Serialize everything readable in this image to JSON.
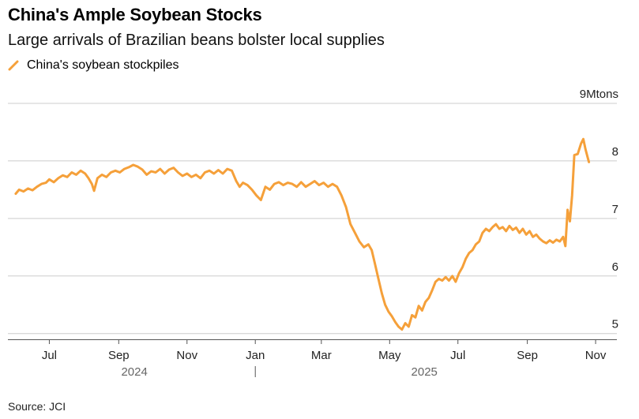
{
  "title": "China's Ample Soybean Stocks",
  "subtitle": "Large arrivals of Brazilian beans bolster local supplies",
  "source": "Source: JCI",
  "colors": {
    "series": "#f5a03a",
    "grid": "#cccccc",
    "axis": "#555555"
  },
  "chart_data": {
    "type": "line",
    "title": "China's Ample Soybean Stocks",
    "subtitle": "Large arrivals of Brazilian beans bolster local supplies",
    "ylim": [
      4.9,
      9
    ],
    "y_ticks": [
      {
        "value": 9,
        "label": "9Mtons"
      },
      {
        "value": 8,
        "label": "8"
      },
      {
        "value": 7,
        "label": "7"
      },
      {
        "value": 6,
        "label": "6"
      },
      {
        "value": 5,
        "label": "5"
      }
    ],
    "x_range": [
      "2024-05-25",
      "2025-11-20"
    ],
    "x_ticks": [
      {
        "date": "2024-07-01",
        "label": "Jul"
      },
      {
        "date": "2024-09-01",
        "label": "Sep"
      },
      {
        "date": "2024-11-01",
        "label": "Nov"
      },
      {
        "date": "2025-01-01",
        "label": "Jan"
      },
      {
        "date": "2025-03-01",
        "label": "Mar"
      },
      {
        "date": "2025-05-01",
        "label": "May"
      },
      {
        "date": "2025-07-01",
        "label": "Jul"
      },
      {
        "date": "2025-09-01",
        "label": "Sep"
      },
      {
        "date": "2025-11-01",
        "label": "Nov"
      }
    ],
    "year_labels": [
      {
        "date": "2024-09-15",
        "label": "2024"
      },
      {
        "date": "2025-06-01",
        "label": "2025"
      }
    ],
    "year_divider": "2025-01-01",
    "series": [
      {
        "name": "China's soybean stockpiles",
        "color": "#f5a03a",
        "points": [
          [
            "2024-06-01",
            7.43
          ],
          [
            "2024-06-04",
            7.5
          ],
          [
            "2024-06-08",
            7.47
          ],
          [
            "2024-06-12",
            7.52
          ],
          [
            "2024-06-16",
            7.49
          ],
          [
            "2024-06-20",
            7.55
          ],
          [
            "2024-06-24",
            7.6
          ],
          [
            "2024-06-28",
            7.62
          ],
          [
            "2024-07-01",
            7.68
          ],
          [
            "2024-07-05",
            7.63
          ],
          [
            "2024-07-09",
            7.7
          ],
          [
            "2024-07-13",
            7.75
          ],
          [
            "2024-07-17",
            7.72
          ],
          [
            "2024-07-21",
            7.8
          ],
          [
            "2024-07-25",
            7.76
          ],
          [
            "2024-07-29",
            7.83
          ],
          [
            "2024-08-02",
            7.78
          ],
          [
            "2024-08-05",
            7.7
          ],
          [
            "2024-08-08",
            7.6
          ],
          [
            "2024-08-10",
            7.48
          ],
          [
            "2024-08-13",
            7.7
          ],
          [
            "2024-08-17",
            7.76
          ],
          [
            "2024-08-21",
            7.72
          ],
          [
            "2024-08-25",
            7.8
          ],
          [
            "2024-08-29",
            7.83
          ],
          [
            "2024-09-02",
            7.8
          ],
          [
            "2024-09-06",
            7.86
          ],
          [
            "2024-09-10",
            7.89
          ],
          [
            "2024-09-14",
            7.93
          ],
          [
            "2024-09-18",
            7.9
          ],
          [
            "2024-09-22",
            7.85
          ],
          [
            "2024-09-26",
            7.76
          ],
          [
            "2024-09-30",
            7.82
          ],
          [
            "2024-10-04",
            7.8
          ],
          [
            "2024-10-08",
            7.86
          ],
          [
            "2024-10-12",
            7.78
          ],
          [
            "2024-10-16",
            7.85
          ],
          [
            "2024-10-20",
            7.88
          ],
          [
            "2024-10-24",
            7.8
          ],
          [
            "2024-10-28",
            7.74
          ],
          [
            "2024-11-01",
            7.78
          ],
          [
            "2024-11-05",
            7.72
          ],
          [
            "2024-11-09",
            7.76
          ],
          [
            "2024-11-13",
            7.7
          ],
          [
            "2024-11-17",
            7.8
          ],
          [
            "2024-11-21",
            7.83
          ],
          [
            "2024-11-25",
            7.78
          ],
          [
            "2024-11-29",
            7.84
          ],
          [
            "2024-12-03",
            7.78
          ],
          [
            "2024-12-07",
            7.86
          ],
          [
            "2024-12-11",
            7.83
          ],
          [
            "2024-12-15",
            7.65
          ],
          [
            "2024-12-18",
            7.55
          ],
          [
            "2024-12-21",
            7.62
          ],
          [
            "2024-12-25",
            7.58
          ],
          [
            "2024-12-29",
            7.5
          ],
          [
            "2025-01-02",
            7.4
          ],
          [
            "2025-01-06",
            7.32
          ],
          [
            "2025-01-10",
            7.55
          ],
          [
            "2025-01-14",
            7.5
          ],
          [
            "2025-01-18",
            7.6
          ],
          [
            "2025-01-22",
            7.63
          ],
          [
            "2025-01-26",
            7.58
          ],
          [
            "2025-01-30",
            7.62
          ],
          [
            "2025-02-03",
            7.6
          ],
          [
            "2025-02-07",
            7.55
          ],
          [
            "2025-02-11",
            7.63
          ],
          [
            "2025-02-15",
            7.55
          ],
          [
            "2025-02-19",
            7.6
          ],
          [
            "2025-02-23",
            7.65
          ],
          [
            "2025-02-27",
            7.58
          ],
          [
            "2025-03-03",
            7.62
          ],
          [
            "2025-03-07",
            7.55
          ],
          [
            "2025-03-11",
            7.6
          ],
          [
            "2025-03-15",
            7.55
          ],
          [
            "2025-03-19",
            7.4
          ],
          [
            "2025-03-23",
            7.2
          ],
          [
            "2025-03-27",
            6.9
          ],
          [
            "2025-03-31",
            6.75
          ],
          [
            "2025-04-04",
            6.6
          ],
          [
            "2025-04-08",
            6.5
          ],
          [
            "2025-04-12",
            6.55
          ],
          [
            "2025-04-15",
            6.45
          ],
          [
            "2025-04-18",
            6.2
          ],
          [
            "2025-04-21",
            5.95
          ],
          [
            "2025-04-24",
            5.7
          ],
          [
            "2025-04-27",
            5.5
          ],
          [
            "2025-04-30",
            5.38
          ],
          [
            "2025-05-03",
            5.3
          ],
          [
            "2025-05-06",
            5.2
          ],
          [
            "2025-05-09",
            5.12
          ],
          [
            "2025-05-12",
            5.07
          ],
          [
            "2025-05-15",
            5.18
          ],
          [
            "2025-05-18",
            5.12
          ],
          [
            "2025-05-21",
            5.32
          ],
          [
            "2025-05-24",
            5.28
          ],
          [
            "2025-05-27",
            5.48
          ],
          [
            "2025-05-30",
            5.4
          ],
          [
            "2025-06-02",
            5.55
          ],
          [
            "2025-06-05",
            5.62
          ],
          [
            "2025-06-08",
            5.75
          ],
          [
            "2025-06-11",
            5.9
          ],
          [
            "2025-06-14",
            5.95
          ],
          [
            "2025-06-17",
            5.92
          ],
          [
            "2025-06-20",
            5.98
          ],
          [
            "2025-06-23",
            5.92
          ],
          [
            "2025-06-26",
            6.0
          ],
          [
            "2025-06-29",
            5.9
          ],
          [
            "2025-07-02",
            6.05
          ],
          [
            "2025-07-05",
            6.15
          ],
          [
            "2025-07-08",
            6.3
          ],
          [
            "2025-07-11",
            6.4
          ],
          [
            "2025-07-14",
            6.45
          ],
          [
            "2025-07-17",
            6.55
          ],
          [
            "2025-07-20",
            6.6
          ],
          [
            "2025-07-23",
            6.75
          ],
          [
            "2025-07-26",
            6.82
          ],
          [
            "2025-07-29",
            6.78
          ],
          [
            "2025-08-01",
            6.85
          ],
          [
            "2025-08-04",
            6.9
          ],
          [
            "2025-08-07",
            6.82
          ],
          [
            "2025-08-10",
            6.85
          ],
          [
            "2025-08-13",
            6.78
          ],
          [
            "2025-08-16",
            6.87
          ],
          [
            "2025-08-19",
            6.8
          ],
          [
            "2025-08-22",
            6.84
          ],
          [
            "2025-08-25",
            6.75
          ],
          [
            "2025-08-28",
            6.82
          ],
          [
            "2025-08-31",
            6.72
          ],
          [
            "2025-09-03",
            6.78
          ],
          [
            "2025-09-06",
            6.68
          ],
          [
            "2025-09-09",
            6.72
          ],
          [
            "2025-09-12",
            6.65
          ],
          [
            "2025-09-15",
            6.6
          ],
          [
            "2025-09-18",
            6.57
          ],
          [
            "2025-09-21",
            6.62
          ],
          [
            "2025-09-24",
            6.58
          ],
          [
            "2025-09-27",
            6.63
          ],
          [
            "2025-09-30",
            6.6
          ],
          [
            "2025-10-03",
            6.68
          ],
          [
            "2025-10-05",
            6.52
          ],
          [
            "2025-10-07",
            7.15
          ],
          [
            "2025-10-09",
            6.95
          ],
          [
            "2025-10-11",
            7.4
          ],
          [
            "2025-10-13",
            8.1
          ],
          [
            "2025-10-16",
            8.12
          ],
          [
            "2025-10-19",
            8.3
          ],
          [
            "2025-10-21",
            8.38
          ],
          [
            "2025-10-23",
            8.2
          ],
          [
            "2025-10-25",
            8.05
          ],
          [
            "2025-10-26",
            7.98
          ]
        ]
      }
    ]
  }
}
